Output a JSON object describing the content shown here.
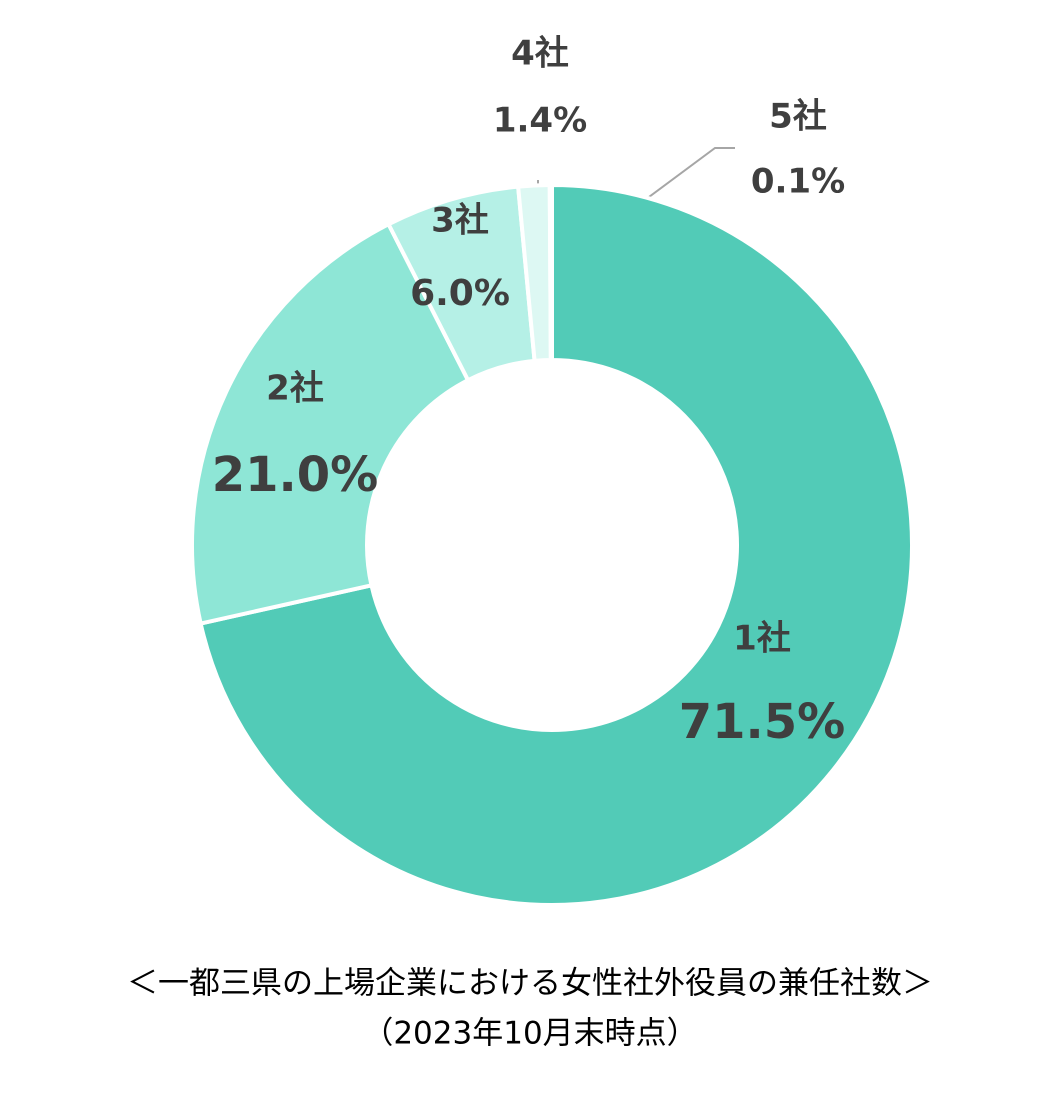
{
  "chart_data": {
    "type": "donut",
    "title": "＜一都三県の上場企業における女性社外役員の兼任社数＞",
    "subtitle": "（2023年10月末時点）",
    "categories": [
      "1社",
      "2社",
      "3社",
      "4社",
      "5社"
    ],
    "values": [
      71.5,
      21.0,
      6.0,
      1.4,
      0.1
    ],
    "value_labels": [
      "71.5%",
      "21.0%",
      "6.0%",
      "1.4%",
      "0.1%"
    ],
    "colors": [
      "#52cbb7",
      "#8ee6d6",
      "#b5f0e6",
      "#ddf8f3",
      "#effcfa"
    ]
  }
}
